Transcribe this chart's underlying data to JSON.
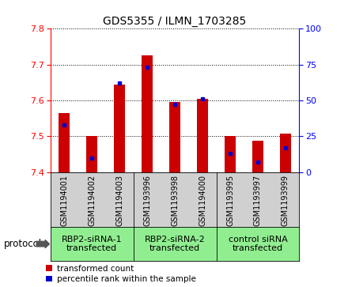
{
  "title": "GDS5355 / ILMN_1703285",
  "samples": [
    "GSM1194001",
    "GSM1194002",
    "GSM1194003",
    "GSM1193996",
    "GSM1193998",
    "GSM1194000",
    "GSM1193995",
    "GSM1193997",
    "GSM1193999"
  ],
  "red_values": [
    7.565,
    7.502,
    7.645,
    7.725,
    7.595,
    7.605,
    7.502,
    7.488,
    7.508
  ],
  "blue_values": [
    33,
    10,
    62,
    73,
    47,
    51,
    13,
    7,
    17
  ],
  "ylim_left": [
    7.4,
    7.8
  ],
  "ylim_right": [
    0,
    100
  ],
  "yticks_left": [
    7.4,
    7.5,
    7.6,
    7.7,
    7.8
  ],
  "yticks_right": [
    0,
    25,
    50,
    75,
    100
  ],
  "groups": [
    {
      "label": "RBP2-siRNA-1\ntransfected",
      "start": 0,
      "end": 3
    },
    {
      "label": "RBP2-siRNA-2\ntransfected",
      "start": 3,
      "end": 6
    },
    {
      "label": "control siRNA\ntransfected",
      "start": 6,
      "end": 9
    }
  ],
  "bar_width": 0.4,
  "red_color": "#cc0000",
  "blue_color": "#0000cc",
  "gray_bg": "#d0d0d0",
  "green_bg": "#90ee90",
  "legend_red": "transformed count",
  "legend_blue": "percentile rank within the sample",
  "protocol_label": "protocol"
}
